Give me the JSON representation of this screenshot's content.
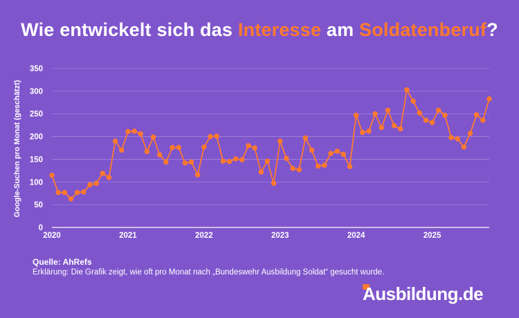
{
  "title": {
    "part1": "Wie entwickelt sich das ",
    "highlight1": "Interesse",
    "part2": " am ",
    "highlight2": "Soldatenberuf",
    "part3": "?"
  },
  "colors": {
    "background": "#7f55cc",
    "accent": "#ff7a2e",
    "text": "#ffffff"
  },
  "chart_data": {
    "type": "line",
    "title": "Wie entwickelt sich das Interesse am Soldatenberuf?",
    "xlabel": "",
    "ylabel": "Google-Suchen pro Monat (geschätzt)",
    "ylim": [
      0,
      350
    ],
    "yticks": [
      0,
      50,
      100,
      150,
      200,
      250,
      300,
      350
    ],
    "xtick_labels": [
      "2020",
      "2021",
      "2022",
      "2023",
      "2024",
      "2025"
    ],
    "x_start": "2020-01",
    "grid": true,
    "series": [
      {
        "name": "Google-Suchen pro Monat",
        "values": [
          115,
          77,
          77,
          63,
          77,
          78,
          94,
          97,
          119,
          110,
          190,
          170,
          211,
          212,
          206,
          167,
          199,
          160,
          144,
          176,
          176,
          142,
          144,
          116,
          177,
          200,
          201,
          146,
          145,
          151,
          149,
          180,
          175,
          122,
          146,
          97,
          190,
          152,
          130,
          127,
          197,
          170,
          135,
          137,
          163,
          168,
          161,
          134,
          247,
          209,
          212,
          250,
          220,
          258,
          224,
          217,
          303,
          278,
          252,
          236,
          231,
          258,
          247,
          198,
          195,
          177,
          207,
          248,
          236,
          283
        ]
      }
    ]
  },
  "footer": {
    "source": "Quelle: AhRefs",
    "explanation": "Erklärung: Die Grafik zeigt, wie oft pro Monat nach „Bundeswehr Ausbildung Soldat“ gesucht wurde.",
    "brand": "Ausbildung.de"
  }
}
